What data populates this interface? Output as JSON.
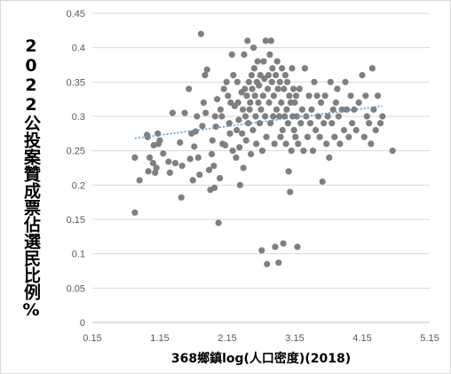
{
  "chart_data": {
    "type": "scatter",
    "title": "",
    "xlabel": "368鄉鎮log(人口密度)(2018)",
    "ylabel": "2022公投案贊成票佔選民比例%",
    "xlim": [
      0.15,
      5.15
    ],
    "ylim": [
      0,
      0.45
    ],
    "xticks": [
      "0.15",
      "1.15",
      "2.15",
      "3.15",
      "4.15",
      "5.15"
    ],
    "yticks": [
      "0",
      "0.05",
      "0.1",
      "0.15",
      "0.2",
      "0.25",
      "0.3",
      "0.35",
      "0.4",
      "0.45"
    ],
    "grid": "horizontal",
    "legend": "none",
    "trendline": {
      "type": "linear",
      "start": [
        0.78,
        0.268
      ],
      "end": [
        4.45,
        0.315
      ]
    },
    "points": [
      [
        0.78,
        0.16
      ],
      [
        0.78,
        0.24
      ],
      [
        0.85,
        0.207
      ],
      [
        0.96,
        0.273
      ],
      [
        0.97,
        0.27
      ],
      [
        0.98,
        0.22
      ],
      [
        1.0,
        0.24
      ],
      [
        1.05,
        0.232
      ],
      [
        1.06,
        0.258
      ],
      [
        1.08,
        0.218
      ],
      [
        1.1,
        0.225
      ],
      [
        1.12,
        0.275
      ],
      [
        1.13,
        0.26
      ],
      [
        1.15,
        0.265
      ],
      [
        1.2,
        0.246
      ],
      [
        1.28,
        0.234
      ],
      [
        1.3,
        0.218
      ],
      [
        1.34,
        0.305
      ],
      [
        1.38,
        0.232
      ],
      [
        1.45,
        0.262
      ],
      [
        1.47,
        0.182
      ],
      [
        1.48,
        0.228
      ],
      [
        1.52,
        0.305
      ],
      [
        1.58,
        0.34
      ],
      [
        1.6,
        0.238
      ],
      [
        1.62,
        0.275
      ],
      [
        1.64,
        0.207
      ],
      [
        1.66,
        0.256
      ],
      [
        1.68,
        0.278
      ],
      [
        1.7,
        0.3
      ],
      [
        1.72,
        0.24
      ],
      [
        1.74,
        0.215
      ],
      [
        1.76,
        0.42
      ],
      [
        1.78,
        0.286
      ],
      [
        1.8,
        0.32
      ],
      [
        1.82,
        0.36
      ],
      [
        1.83,
        0.305
      ],
      [
        1.85,
        0.368
      ],
      [
        1.88,
        0.222
      ],
      [
        1.9,
        0.193
      ],
      [
        1.92,
        0.245
      ],
      [
        1.93,
        0.265
      ],
      [
        1.95,
        0.228
      ],
      [
        1.96,
        0.196
      ],
      [
        1.97,
        0.3
      ],
      [
        1.98,
        0.285
      ],
      [
        2.0,
        0.325
      ],
      [
        2.02,
        0.145
      ],
      [
        2.04,
        0.21
      ],
      [
        2.05,
        0.31
      ],
      [
        2.07,
        0.3
      ],
      [
        2.08,
        0.26
      ],
      [
        2.1,
        0.34
      ],
      [
        2.12,
        0.258
      ],
      [
        2.14,
        0.35
      ],
      [
        2.16,
        0.33
      ],
      [
        2.18,
        0.29
      ],
      [
        2.19,
        0.275
      ],
      [
        2.2,
        0.32
      ],
      [
        2.22,
        0.39
      ],
      [
        2.23,
        0.25
      ],
      [
        2.24,
        0.36
      ],
      [
        2.26,
        0.315
      ],
      [
        2.28,
        0.24
      ],
      [
        2.29,
        0.28
      ],
      [
        2.3,
        0.35
      ],
      [
        2.31,
        0.32
      ],
      [
        2.32,
        0.295
      ],
      [
        2.33,
        0.255
      ],
      [
        2.34,
        0.2
      ],
      [
        2.36,
        0.335
      ],
      [
        2.37,
        0.275
      ],
      [
        2.38,
        0.31
      ],
      [
        2.39,
        0.225
      ],
      [
        2.4,
        0.39
      ],
      [
        2.41,
        0.34
      ],
      [
        2.42,
        0.3
      ],
      [
        2.43,
        0.265
      ],
      [
        2.44,
        0.33
      ],
      [
        2.45,
        0.41
      ],
      [
        2.46,
        0.29
      ],
      [
        2.47,
        0.35
      ],
      [
        2.48,
        0.31
      ],
      [
        2.49,
        0.32
      ],
      [
        2.5,
        0.245
      ],
      [
        2.51,
        0.36
      ],
      [
        2.52,
        0.34
      ],
      [
        2.53,
        0.28
      ],
      [
        2.54,
        0.4
      ],
      [
        2.55,
        0.37
      ],
      [
        2.56,
        0.33
      ],
      [
        2.57,
        0.3
      ],
      [
        2.58,
        0.26
      ],
      [
        2.59,
        0.35
      ],
      [
        2.6,
        0.38
      ],
      [
        2.61,
        0.32
      ],
      [
        2.62,
        0.345
      ],
      [
        2.63,
        0.29
      ],
      [
        2.64,
        0.36
      ],
      [
        2.65,
        0.31
      ],
      [
        2.66,
        0.105
      ],
      [
        2.67,
        0.25
      ],
      [
        2.68,
        0.33
      ],
      [
        2.69,
        0.38
      ],
      [
        2.7,
        0.355
      ],
      [
        2.71,
        0.3
      ],
      [
        2.72,
        0.41
      ],
      [
        2.73,
        0.27
      ],
      [
        2.74,
        0.085
      ],
      [
        2.75,
        0.34
      ],
      [
        2.76,
        0.36
      ],
      [
        2.77,
        0.32
      ],
      [
        2.78,
        0.39
      ],
      [
        2.79,
        0.29
      ],
      [
        2.8,
        0.41
      ],
      [
        2.81,
        0.35
      ],
      [
        2.82,
        0.37
      ],
      [
        2.83,
        0.3
      ],
      [
        2.84,
        0.33
      ],
      [
        2.85,
        0.26
      ],
      [
        2.86,
        0.11
      ],
      [
        2.87,
        0.36
      ],
      [
        2.88,
        0.31
      ],
      [
        2.89,
        0.38
      ],
      [
        2.9,
        0.34
      ],
      [
        2.91,
        0.087
      ],
      [
        2.92,
        0.3
      ],
      [
        2.93,
        0.35
      ],
      [
        2.94,
        0.27
      ],
      [
        2.95,
        0.32
      ],
      [
        2.96,
        0.37
      ],
      [
        2.97,
        0.28
      ],
      [
        2.98,
        0.115
      ],
      [
        2.99,
        0.34
      ],
      [
        3.0,
        0.3
      ],
      [
        3.01,
        0.36
      ],
      [
        3.02,
        0.26
      ],
      [
        3.03,
        0.31
      ],
      [
        3.04,
        0.35
      ],
      [
        3.05,
        0.29
      ],
      [
        3.06,
        0.22
      ],
      [
        3.07,
        0.33
      ],
      [
        3.08,
        0.19
      ],
      [
        3.09,
        0.32
      ],
      [
        3.1,
        0.25
      ],
      [
        3.11,
        0.37
      ],
      [
        3.12,
        0.3
      ],
      [
        3.13,
        0.34
      ],
      [
        3.14,
        0.28
      ],
      [
        3.15,
        0.32
      ],
      [
        3.16,
        0.27
      ],
      [
        3.17,
        0.33
      ],
      [
        3.18,
        0.3
      ],
      [
        3.19,
        0.11
      ],
      [
        3.2,
        0.26
      ],
      [
        3.22,
        0.34
      ],
      [
        3.24,
        0.29
      ],
      [
        3.26,
        0.31
      ],
      [
        3.28,
        0.25
      ],
      [
        3.3,
        0.37
      ],
      [
        3.32,
        0.3
      ],
      [
        3.34,
        0.27
      ],
      [
        3.36,
        0.33
      ],
      [
        3.38,
        0.29
      ],
      [
        3.4,
        0.31
      ],
      [
        3.42,
        0.25
      ],
      [
        3.44,
        0.35
      ],
      [
        3.46,
        0.28
      ],
      [
        3.48,
        0.33
      ],
      [
        3.5,
        0.3
      ],
      [
        3.52,
        0.27
      ],
      [
        3.54,
        0.32
      ],
      [
        3.56,
        0.205
      ],
      [
        3.58,
        0.29
      ],
      [
        3.6,
        0.33
      ],
      [
        3.62,
        0.26
      ],
      [
        3.64,
        0.3
      ],
      [
        3.66,
        0.24
      ],
      [
        3.68,
        0.35
      ],
      [
        3.7,
        0.29
      ],
      [
        3.72,
        0.31
      ],
      [
        3.74,
        0.27
      ],
      [
        3.76,
        0.32
      ],
      [
        3.78,
        0.34
      ],
      [
        3.8,
        0.3
      ],
      [
        3.82,
        0.26
      ],
      [
        3.85,
        0.31
      ],
      [
        3.88,
        0.28
      ],
      [
        3.9,
        0.35
      ],
      [
        3.92,
        0.31
      ],
      [
        3.95,
        0.27
      ],
      [
        3.98,
        0.33
      ],
      [
        4.0,
        0.29
      ],
      [
        4.03,
        0.31
      ],
      [
        4.06,
        0.28
      ],
      [
        4.1,
        0.32
      ],
      [
        4.15,
        0.36
      ],
      [
        4.18,
        0.27
      ],
      [
        4.2,
        0.33
      ],
      [
        4.22,
        0.3
      ],
      [
        4.25,
        0.29
      ],
      [
        4.28,
        0.26
      ],
      [
        4.3,
        0.37
      ],
      [
        4.32,
        0.31
      ],
      [
        4.35,
        0.28
      ],
      [
        4.38,
        0.33
      ],
      [
        4.42,
        0.29
      ],
      [
        4.45,
        0.3
      ],
      [
        4.6,
        0.25
      ]
    ]
  }
}
